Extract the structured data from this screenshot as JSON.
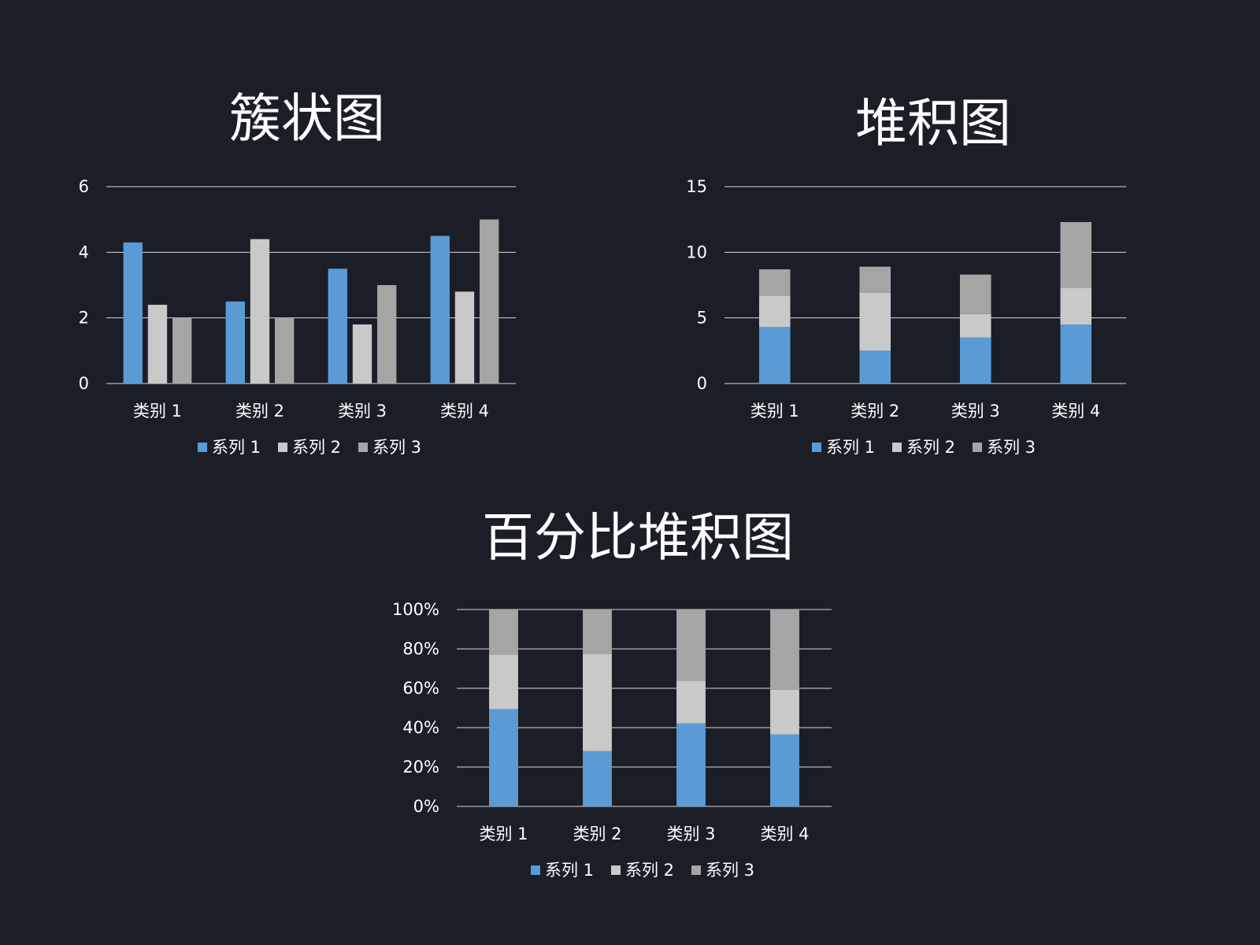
{
  "chart_data": [
    {
      "id": "clustered",
      "type": "bar",
      "mode": "clustered",
      "title": "簇状图",
      "categories": [
        "类别 1",
        "类别 2",
        "类别 3",
        "类别 4"
      ],
      "series": [
        {
          "name": "系列 1",
          "values": [
            4.3,
            2.5,
            3.5,
            4.5
          ],
          "color": "#5b9bd5"
        },
        {
          "name": "系列 2",
          "values": [
            2.4,
            4.4,
            1.8,
            2.8
          ],
          "color": "#c9c9c9"
        },
        {
          "name": "系列 3",
          "values": [
            2,
            2,
            3,
            5
          ],
          "color": "#a5a5a5"
        }
      ],
      "ylim": [
        0,
        6
      ],
      "yticks": [
        0,
        2,
        4,
        6
      ],
      "ytick_labels": [
        "0",
        "2",
        "4",
        "6"
      ],
      "grid": true,
      "legend": "bottom"
    },
    {
      "id": "stacked",
      "type": "bar",
      "mode": "stacked",
      "title": "堆积图",
      "categories": [
        "类别 1",
        "类别 2",
        "类别 3",
        "类别 4"
      ],
      "series": [
        {
          "name": "系列 1",
          "values": [
            4.3,
            2.5,
            3.5,
            4.5
          ],
          "color": "#5b9bd5"
        },
        {
          "name": "系列 2",
          "values": [
            2.4,
            4.4,
            1.8,
            2.8
          ],
          "color": "#c9c9c9"
        },
        {
          "name": "系列 3",
          "values": [
            2,
            2,
            3,
            5
          ],
          "color": "#a5a5a5"
        }
      ],
      "ylim": [
        0,
        15
      ],
      "yticks": [
        0,
        5,
        10,
        15
      ],
      "ytick_labels": [
        "0",
        "5",
        "10",
        "15"
      ],
      "grid": true,
      "legend": "bottom"
    },
    {
      "id": "percent",
      "type": "bar",
      "mode": "percent-stacked",
      "title": "百分比堆积图",
      "categories": [
        "类别 1",
        "类别 2",
        "类别 3",
        "类别 4"
      ],
      "series": [
        {
          "name": "系列 1",
          "values": [
            4.3,
            2.5,
            3.5,
            4.5
          ],
          "color": "#5b9bd5"
        },
        {
          "name": "系列 2",
          "values": [
            2.4,
            4.4,
            1.8,
            2.8
          ],
          "color": "#c9c9c9"
        },
        {
          "name": "系列 3",
          "values": [
            2,
            2,
            3,
            5
          ],
          "color": "#a5a5a5"
        }
      ],
      "ylim": [
        0,
        100
      ],
      "yticks": [
        0,
        20,
        40,
        60,
        80,
        100
      ],
      "ytick_labels": [
        "0%",
        "20%",
        "40%",
        "60%",
        "80%",
        "100%"
      ],
      "grid": true,
      "legend": "bottom"
    }
  ],
  "theme": {
    "background": "#1b1e27",
    "text": "#ffffff",
    "gridline": "#d9d9d9"
  }
}
